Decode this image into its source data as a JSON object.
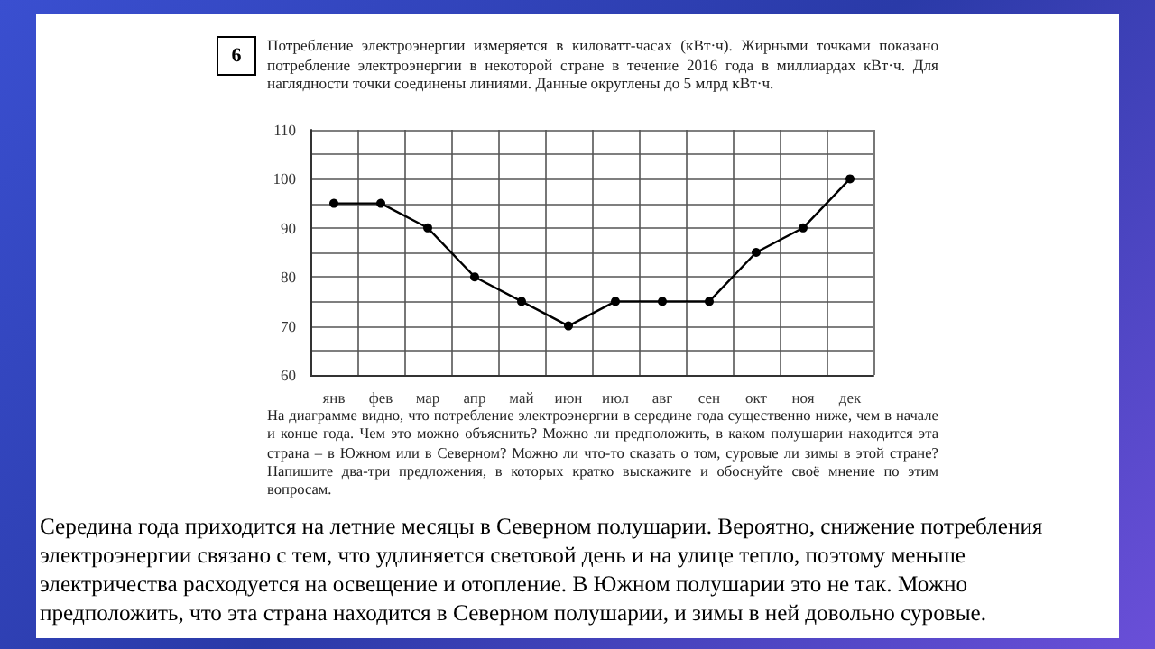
{
  "chart_data": {
    "type": "line",
    "title": "Потребление электроэнергии измеряется в киловатт-часах (кВт·ч). Жирными точками показано потребление электроэнергии в некоторой стране в течение 2016 года в миллиардах кВт·ч. Для наглядности точки соединены линиями. Данные округлены до 5 млрд кВт·ч.",
    "annotations": [
      "6",
      "На диаграмме видно, что потребление электроэнергии в середине года существенно ниже, чем в начале и конце года. Чем это можно объяснить? Можно ли предположить, в каком полушарии находится эта страна – в Южном или в Северном? Можно ли что-то сказать о том, суровые ли зимы в этой стране? Напишите два-три предложения, в которых кратко выскажите и обоснуйте своё мнение по этим вопросам.",
      "Середина года приходится на летние месяцы в Северном полушарии. Вероятно, снижение потребления электроэнергии связано с тем, что удлиняется световой день и на улице тепло, поэтому меньше электричества расходуется на освещение и отопление. В Южном полушарии это не так. Можно предположить, что эта страна находится в Северном полушарии, и зимы в ней довольно суровые."
    ],
    "categories": [
      "янв",
      "фев",
      "мар",
      "апр",
      "май",
      "июн",
      "июл",
      "авг",
      "сен",
      "окт",
      "ноя",
      "дек"
    ],
    "series": [
      {
        "color": "#000000",
        "values": [
          95,
          95,
          90,
          80,
          75,
          70,
          75,
          75,
          75,
          85,
          90,
          100
        ]
      }
    ],
    "ylim": [
      60,
      110
    ],
    "yticks": [
      60,
      {
        "value": 65,
        "label": null
      },
      70,
      {
        "value": 75,
        "label": null
      },
      80,
      {
        "value": 85,
        "label": null
      },
      90,
      {
        "value": 95,
        "label": null
      },
      100,
      {
        "value": 105,
        "label": null
      },
      110
    ],
    "grid": true,
    "marker": "circle",
    "line_style": "solid"
  }
}
